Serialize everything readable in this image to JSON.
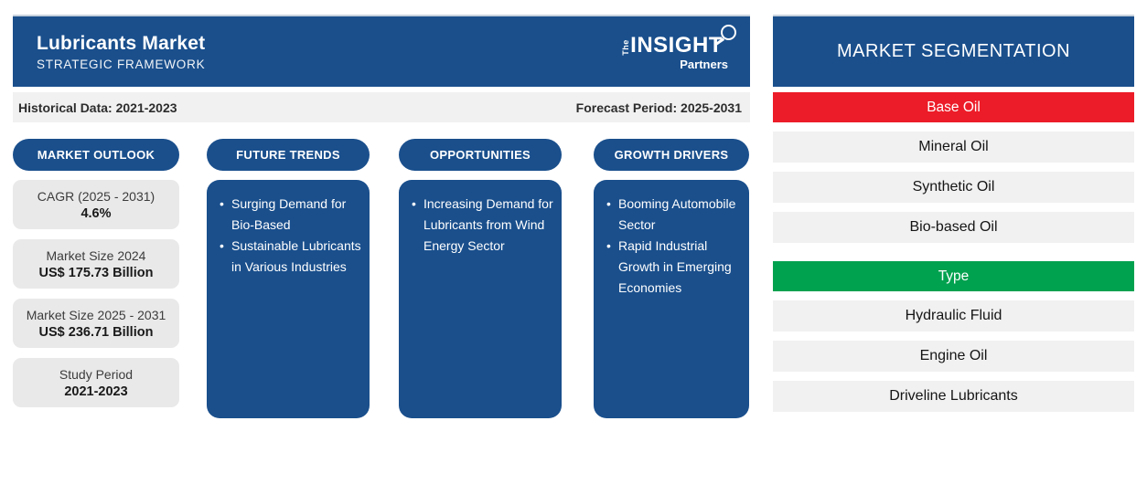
{
  "header": {
    "title": "Lubricants Market",
    "subtitle": "STRATEGIC FRAMEWORK",
    "logo": {
      "the": "The",
      "insight": "INSIGHT",
      "partners": "Partners"
    }
  },
  "period_bar": {
    "historical": "Historical Data: 2021-2023",
    "forecast": "Forecast Period: 2025-2031"
  },
  "columns": [
    {
      "title": "MARKET OUTLOOK",
      "stats": [
        {
          "label": "CAGR (2025 - 2031)",
          "value": "4.6%"
        },
        {
          "label": "Market Size 2024",
          "value": "US$ 175.73 Billion"
        },
        {
          "label": "Market Size 2025 - 2031",
          "value": "US$ 236.71 Billion"
        },
        {
          "label": "Study Period",
          "value": "2021-2023"
        }
      ]
    },
    {
      "title": "FUTURE TRENDS",
      "bullets": [
        "Surging Demand for Bio-Based",
        "Sustainable Lubricants in Various Industries"
      ]
    },
    {
      "title": "OPPORTUNITIES",
      "bullets": [
        "Increasing Demand for Lubricants from Wind Energy Sector"
      ]
    },
    {
      "title": "GROWTH DRIVERS",
      "bullets": [
        "Booming Automobile Sector",
        "Rapid Industrial Growth in Emerging Economies"
      ]
    }
  ],
  "segmentation": {
    "title": "MARKET SEGMENTATION",
    "groups": [
      {
        "name": "Base Oil",
        "color": "#EC1C28",
        "items": [
          "Mineral Oil",
          "Synthetic Oil",
          "Bio-based Oil"
        ]
      },
      {
        "name": "Type",
        "color": "#00A14F",
        "items": [
          "Hydraulic Fluid",
          "Engine Oil",
          "Driveline Lubricants"
        ]
      }
    ]
  },
  "colors": {
    "navy": "#1A4F8C",
    "red": "#EC1C28",
    "green": "#00A14F",
    "panel_gray": "#F1F1F1",
    "stat_gray": "#E9E9E9"
  }
}
